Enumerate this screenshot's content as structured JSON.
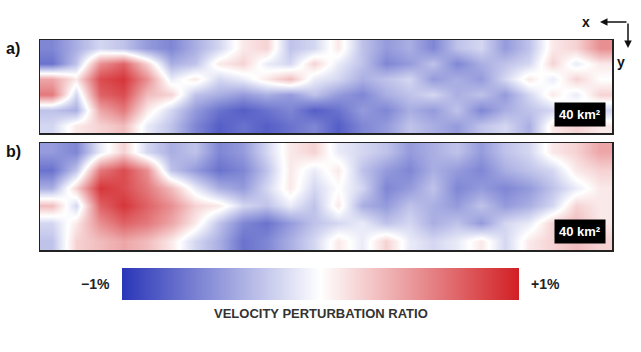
{
  "chart_data": {
    "type": "heatmap",
    "tick_labels": false,
    "axis_labels": {
      "x": "x",
      "y": "y"
    },
    "panels": [
      {
        "label": "a)",
        "annotation": "40 km²",
        "cells": [
          [
            -0.6,
            -0.4,
            -0.2,
            -0.3,
            -0.5,
            -0.6,
            -0.4,
            -0.2,
            0.1,
            0.2,
            -0.3,
            -0.2,
            0.1,
            -0.3,
            -0.5,
            -0.4,
            -0.6,
            -0.3,
            -0.2,
            -0.5,
            -0.3,
            0.1,
            0.2,
            0.5
          ],
          [
            -0.7,
            -0.3,
            0.5,
            0.7,
            0.2,
            -0.4,
            -0.3,
            0.1,
            0.2,
            -0.1,
            -0.2,
            0.2,
            -0.1,
            -0.3,
            -0.6,
            -0.5,
            -0.3,
            -0.6,
            -0.4,
            -0.3,
            -0.2,
            0.2,
            -0.1,
            0.1
          ],
          [
            0.4,
            0.1,
            0.8,
            0.9,
            0.5,
            -0.1,
            0.1,
            -0.2,
            -0.1,
            0.1,
            0.3,
            -0.1,
            -0.2,
            -0.4,
            -0.3,
            -0.2,
            -0.5,
            -0.4,
            -0.5,
            -0.2,
            0.1,
            -0.1,
            0.2,
            0.0
          ],
          [
            0.6,
            -0.2,
            0.7,
            0.8,
            0.3,
            0.2,
            -0.3,
            -0.4,
            -0.5,
            -0.4,
            -0.5,
            -0.3,
            -0.5,
            -0.6,
            -0.4,
            -0.3,
            -0.2,
            -0.4,
            -0.3,
            -0.5,
            -0.2,
            0.1,
            -0.1,
            0.2
          ],
          [
            -0.3,
            -0.4,
            0.4,
            0.6,
            0.1,
            -0.2,
            -0.5,
            -0.7,
            -0.8,
            -0.7,
            -0.6,
            -0.8,
            -0.7,
            -0.5,
            -0.6,
            -0.4,
            -0.5,
            -0.3,
            -0.6,
            -0.4,
            -0.3,
            -0.2,
            0.1,
            -0.2
          ],
          [
            -0.2,
            0.1,
            0.2,
            0.3,
            -0.1,
            -0.3,
            -0.6,
            -0.8,
            -0.7,
            -0.8,
            -0.7,
            -0.6,
            -0.8,
            -0.6,
            -0.5,
            -0.3,
            -0.4,
            -0.5,
            -0.3,
            -0.2,
            -0.4,
            0.1,
            0.2,
            0.1
          ]
        ]
      },
      {
        "label": "b)",
        "annotation": "40 km²",
        "cells": [
          [
            -0.5,
            -0.6,
            -0.1,
            0.2,
            -0.2,
            -0.4,
            -0.3,
            -0.6,
            -0.5,
            -0.2,
            0.1,
            0.2,
            -0.1,
            -0.2,
            -0.3,
            -0.5,
            -0.4,
            -0.3,
            -0.5,
            -0.3,
            -0.2,
            0.1,
            0.2,
            0.4
          ],
          [
            -0.7,
            -0.3,
            0.6,
            0.8,
            0.5,
            -0.3,
            -0.5,
            -0.7,
            -0.6,
            -0.3,
            0.1,
            -0.1,
            0.1,
            -0.3,
            -0.5,
            -0.6,
            -0.4,
            -0.5,
            -0.6,
            -0.4,
            -0.3,
            -0.2,
            0.1,
            0.2
          ],
          [
            -0.4,
            0.2,
            0.9,
            0.8,
            0.6,
            0.3,
            -0.1,
            -0.4,
            -0.5,
            -0.2,
            0.1,
            -0.2,
            0.0,
            -0.2,
            -0.6,
            -0.5,
            -0.3,
            -0.6,
            -0.5,
            -0.6,
            -0.5,
            -0.3,
            -0.1,
            0.1
          ],
          [
            0.3,
            -0.2,
            0.7,
            0.9,
            0.7,
            0.5,
            0.2,
            0.1,
            -0.2,
            -0.3,
            -0.1,
            -0.3,
            0.1,
            -0.4,
            -0.5,
            -0.3,
            -0.4,
            -0.5,
            -0.3,
            -0.5,
            -0.4,
            -0.2,
            0.2,
            0.1
          ],
          [
            -0.2,
            0.1,
            0.5,
            0.7,
            0.6,
            0.4,
            0.1,
            -0.3,
            -0.6,
            -0.7,
            -0.5,
            -0.3,
            -0.2,
            -0.1,
            -0.3,
            -0.2,
            -0.4,
            -0.3,
            -0.5,
            -0.2,
            -0.1,
            0.2,
            0.3,
            0.1
          ],
          [
            -0.3,
            0.2,
            0.3,
            0.4,
            0.3,
            0.1,
            -0.2,
            -0.4,
            -0.7,
            -0.6,
            -0.4,
            -0.2,
            0.1,
            -0.1,
            0.2,
            -0.1,
            -0.2,
            -0.1,
            0.1,
            -0.2,
            0.1,
            0.2,
            0.3,
            0.2
          ]
        ]
      }
    ],
    "colorbar": {
      "title": "VELOCITY PERTURBATION RATIO",
      "range": [
        -1,
        1
      ],
      "ticks": [
        {
          "value": -1,
          "label": "−1%"
        },
        {
          "value": 1,
          "label": "+1%"
        }
      ]
    }
  }
}
